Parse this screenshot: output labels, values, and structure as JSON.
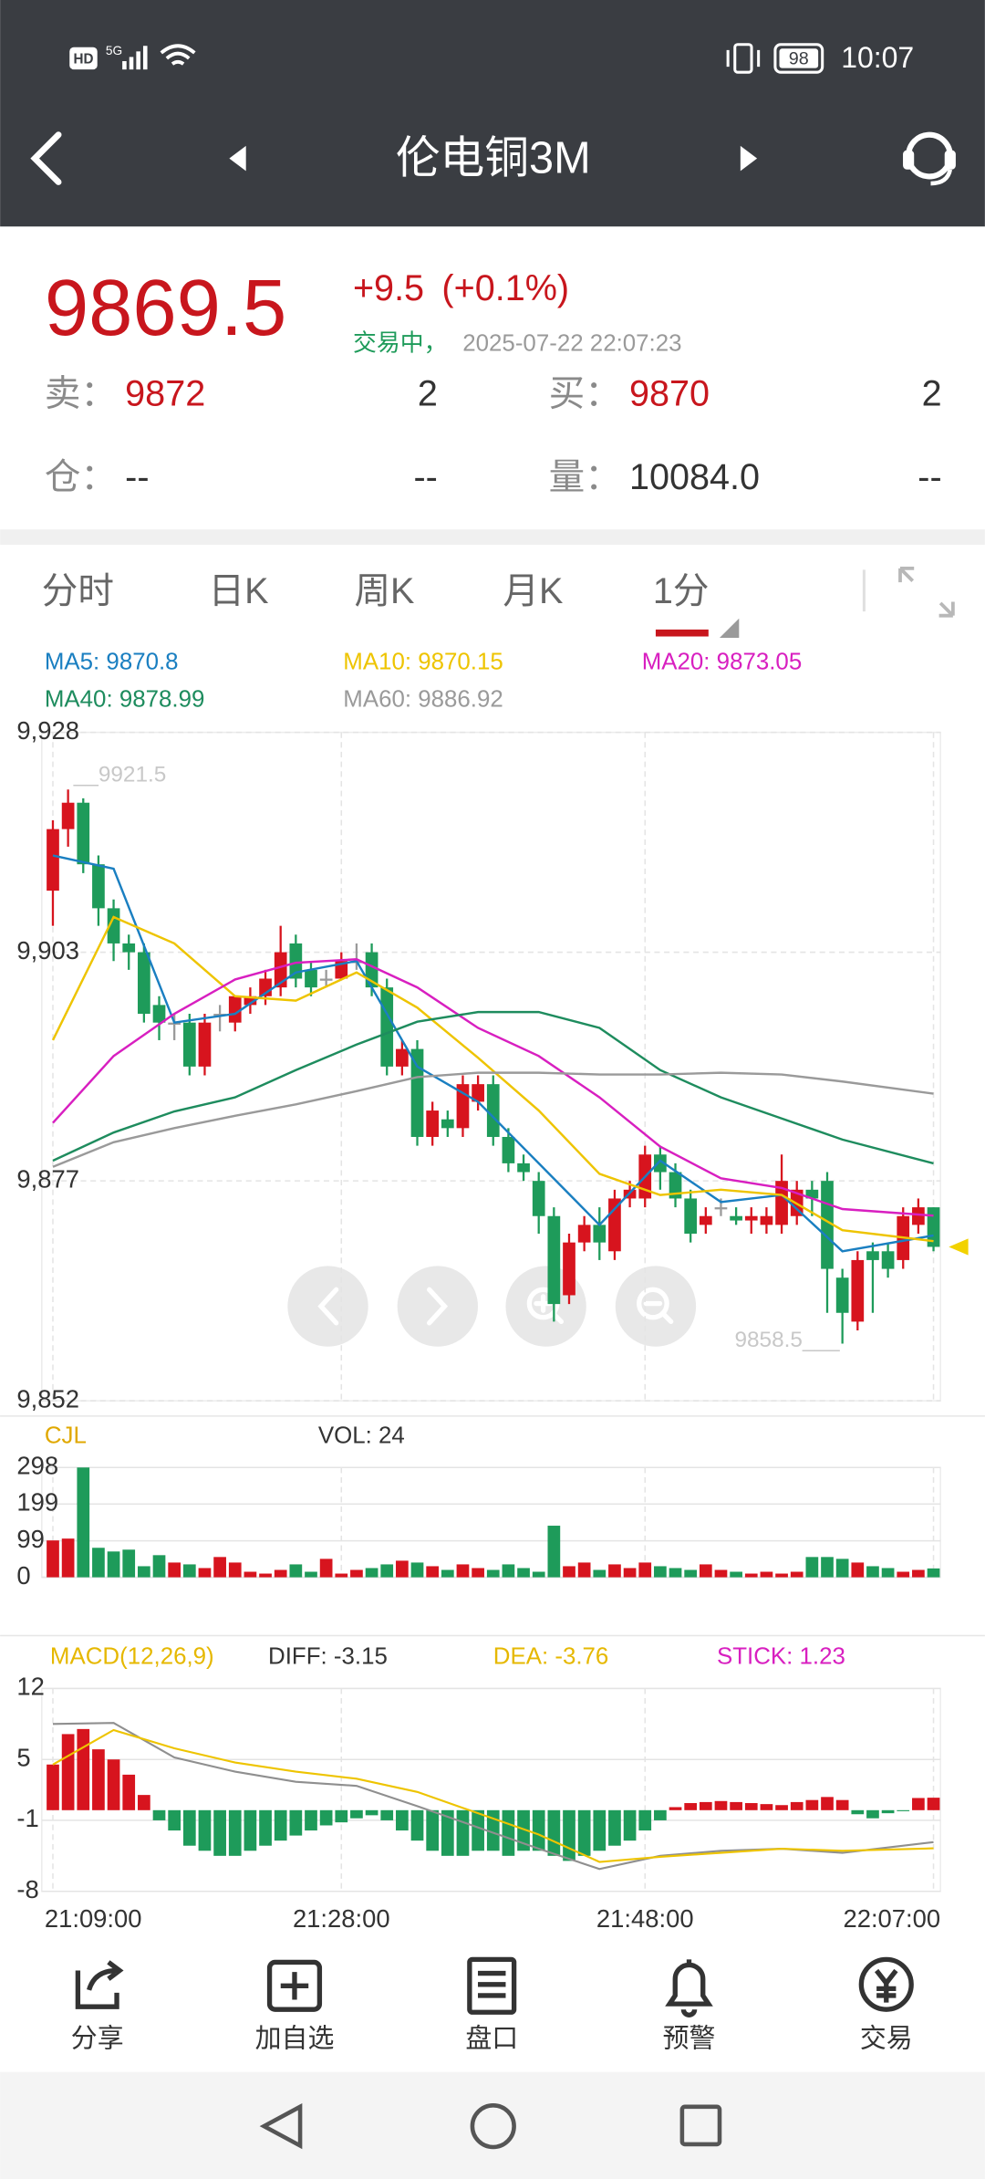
{
  "status_bar": {
    "hd": "HD",
    "network": "5G",
    "battery": 98,
    "time": "10:07"
  },
  "header": {
    "title": "伦电铜3M"
  },
  "quote": {
    "price": 9869.5,
    "change": "+9.5",
    "change_pct": "(+0.1%)",
    "status": "交易中，",
    "timestamp": "2025-07-22 22:07:23",
    "sell_label": "卖：",
    "sell_price": 9872,
    "sell_qty": 2,
    "buy_label": "买：",
    "buy_price": 9870,
    "buy_qty": 2,
    "oi_label": "仓：",
    "oi": "--",
    "oi_change": "--",
    "vol_label": "量：",
    "volume": "10084.0",
    "volume_change": "--"
  },
  "tabs": [
    "分时",
    "日K",
    "周K",
    "月K",
    "1分"
  ],
  "selected_tab": 4,
  "chart_data": [
    {
      "type": "candlestick",
      "up_color": "#d7141e",
      "down_color": "#1e9b5a",
      "flat_color": "#9a9a9a",
      "open": [
        9910,
        9917,
        9920,
        9913,
        9908,
        9904,
        9903,
        9897,
        9895,
        9895,
        9890,
        9896,
        9895,
        9897,
        9898,
        9899,
        9904,
        9901,
        9900,
        9900,
        9902,
        9903,
        9899,
        9890,
        9892,
        9882,
        9884,
        9883,
        9886,
        9888,
        9882,
        9879,
        9877,
        9873,
        9864,
        9870,
        9872,
        9869,
        9875,
        9875,
        9880,
        9878,
        9875,
        9872,
        9874,
        9873,
        9872.5,
        9872,
        9872,
        9873,
        9876,
        9877,
        9866,
        9861,
        9869,
        9869,
        9868,
        9872,
        9874
      ],
      "high": [
        9918,
        9921.5,
        9920.5,
        9914,
        9909,
        9905,
        9904,
        9898,
        9896,
        9896,
        9896,
        9897,
        9898,
        9899,
        9901,
        9906,
        9905,
        9902,
        9901,
        9903,
        9904,
        9904,
        9900,
        9893,
        9893,
        9886,
        9885,
        9889,
        9889,
        9889,
        9883,
        9880,
        9878,
        9874,
        9871,
        9873,
        9874,
        9876,
        9877,
        9881,
        9881,
        9879,
        9876,
        9874,
        9875,
        9874,
        9874,
        9874,
        9880,
        9877,
        9877,
        9878,
        9867,
        9869,
        9870,
        9870,
        9874,
        9875,
        9874
      ],
      "low": [
        9906,
        9915,
        9912,
        9906,
        9902,
        9901,
        9895,
        9893,
        9893,
        9889,
        9889,
        9894,
        9894,
        9896,
        9897,
        9898,
        9899,
        9898,
        9899,
        9900,
        9901,
        9898,
        9889,
        9889,
        9881,
        9881,
        9882,
        9882,
        9885,
        9881,
        9878,
        9877,
        9871,
        9861,
        9863,
        9869,
        9868,
        9868,
        9874,
        9874,
        9876,
        9874,
        9870,
        9871,
        9873,
        9872,
        9871,
        9871,
        9871,
        9872,
        9873,
        9862,
        9858.5,
        9860,
        9862,
        9866,
        9867,
        9871,
        9869
      ],
      "close": [
        9917,
        9920,
        9913,
        9908,
        9904,
        9903,
        9896,
        9895,
        9895,
        9890,
        9895,
        9896,
        9898,
        9898,
        9900,
        9903,
        9900,
        9899,
        9900,
        9902,
        9902,
        9899,
        9890,
        9892,
        9882,
        9885,
        9883,
        9888,
        9888,
        9882,
        9879,
        9878,
        9873,
        9863,
        9870,
        9872,
        9870,
        9875,
        9876,
        9880,
        9878,
        9875,
        9871,
        9873,
        9874,
        9872.5,
        9873,
        9873,
        9877,
        9876,
        9875,
        9867,
        9862,
        9868,
        9868,
        9867,
        9873,
        9874,
        9869.5
      ],
      "max_label": "__9921.5",
      "min_label": "9858.5___",
      "ylim": [
        9852,
        9928
      ],
      "yticks": [
        {
          "value": 9928,
          "label": "9,928"
        },
        {
          "value": 9903,
          "label": "9,903"
        },
        {
          "value": 9877,
          "label": "9,877"
        },
        {
          "value": 9852,
          "label": "9,852"
        }
      ],
      "grid": true,
      "series": [
        {
          "name": "MA5: 9870.8",
          "color": "#1a7fc1",
          "x": [
            0,
            4,
            8,
            12,
            16,
            20,
            24,
            28,
            32,
            36,
            40,
            44,
            48,
            52,
            58
          ],
          "values": [
            9914,
            9912.5,
            9895,
            9896,
            9900.7,
            9902,
            9890,
            9886,
            9879,
            9872,
            9879.3,
            9874.6,
            9875.4,
            9869,
            9870.8
          ]
        },
        {
          "name": "MA10: 9870.15",
          "color": "#eec400",
          "x": [
            0,
            4,
            8,
            12,
            16,
            20,
            24,
            28,
            32,
            36,
            40,
            44,
            48,
            52,
            58
          ],
          "values": [
            9893,
            9907,
            9904,
            9898,
            9897.5,
            9900.7,
            9896.7,
            9891,
            9885,
            9877.8,
            9875.4,
            9876,
            9875.4,
            9871.4,
            9870.15
          ]
        },
        {
          "name": "MA20: 9873.05",
          "color": "#d81fc0",
          "x": [
            0,
            4,
            8,
            12,
            16,
            20,
            24,
            28,
            32,
            36,
            40,
            44,
            48,
            52,
            58
          ],
          "values": [
            9883.6,
            9891.2,
            9896,
            9899.9,
            9901.8,
            9902.2,
            9899,
            9894.4,
            9891.2,
            9886.5,
            9880.9,
            9877.3,
            9876.2,
            9873.8,
            9873.05
          ]
        },
        {
          "name": "MA40: 9878.99",
          "color": "#1e8c5e",
          "x": [
            0,
            4,
            8,
            12,
            16,
            20,
            24,
            28,
            32,
            36,
            40,
            44,
            48,
            52,
            58
          ],
          "values": [
            9879.3,
            9882.5,
            9884.9,
            9886.5,
            9889.6,
            9892.5,
            9895.1,
            9896.2,
            9896.2,
            9894.4,
            9889.6,
            9886.5,
            9884.1,
            9881.7,
            9878.99
          ]
        },
        {
          "name": "MA60: 9886.92",
          "color": "#9a9a9a",
          "x": [
            0,
            4,
            8,
            12,
            16,
            20,
            24,
            28,
            32,
            36,
            40,
            44,
            48,
            52,
            58
          ],
          "values": [
            9878.6,
            9881.4,
            9883,
            9884.4,
            9885.7,
            9887.2,
            9888.8,
            9889.3,
            9889.3,
            9889.1,
            9889.1,
            9889.3,
            9889.1,
            9888.3,
            9886.92
          ]
        }
      ]
    },
    {
      "type": "bar",
      "title": "CJL",
      "title_color": "#e0a800",
      "subtitle": "VOL: 24",
      "values": [
        100,
        105,
        298,
        80,
        70,
        75,
        30,
        60,
        40,
        35,
        25,
        55,
        40,
        15,
        10,
        20,
        35,
        15,
        50,
        10,
        20,
        25,
        35,
        45,
        40,
        30,
        20,
        35,
        25,
        20,
        35,
        25,
        15,
        140,
        30,
        40,
        20,
        35,
        25,
        40,
        30,
        25,
        20,
        35,
        20,
        15,
        10,
        15,
        10,
        15,
        55,
        55,
        50,
        40,
        30,
        25,
        15,
        20,
        24
      ],
      "ylim": [
        0,
        298
      ],
      "yticks": [
        0,
        99,
        199,
        298
      ]
    },
    {
      "type": "macd",
      "title": "MACD(12,26,9)",
      "title_color": "#e6b800",
      "stick_name": "STICK: 1.23",
      "stick_color": "#d81fc0",
      "values": [
        4.5,
        7.5,
        8,
        6,
        5,
        3.5,
        1.5,
        -1,
        -2,
        -3.5,
        -4,
        -4.5,
        -4.5,
        -4,
        -3.5,
        -3,
        -2.5,
        -2,
        -1.5,
        -1.2,
        -0.8,
        -0.5,
        -1,
        -2,
        -3,
        -4,
        -4.5,
        -4.5,
        -4,
        -4,
        -4.5,
        -4,
        -4,
        -4.5,
        -5,
        -4.5,
        -4,
        -3.5,
        -3,
        -2,
        -1,
        0.3,
        0.7,
        0.8,
        0.9,
        0.8,
        0.7,
        0.6,
        0.5,
        0.8,
        1,
        1.3,
        1,
        -0.4,
        -0.8,
        -0.3,
        -0.1,
        1.2,
        1.23
      ],
      "series": [
        {
          "name": "DIFF: -3.15",
          "color": "#8f8f8f",
          "legend_color": "#333333",
          "x": [
            0,
            4,
            8,
            12,
            16,
            20,
            24,
            28,
            32,
            36,
            40,
            44,
            48,
            52,
            58
          ],
          "values": [
            8.5,
            8.6,
            5.2,
            3.8,
            2.8,
            2.4,
            0.4,
            -1.7,
            -3.8,
            -5.8,
            -4.5,
            -4,
            -3.8,
            -4.2,
            -3.15
          ]
        },
        {
          "name": "DEA: -3.76",
          "color": "#eec400",
          "legend_color": "#e6b800",
          "x": [
            0,
            4,
            8,
            12,
            16,
            20,
            24,
            28,
            32,
            36,
            40,
            44,
            48,
            52,
            58
          ],
          "values": [
            4.5,
            7.9,
            6.1,
            4.7,
            3.8,
            3.1,
            1.8,
            -0.3,
            -2.4,
            -5.1,
            -4.6,
            -4.2,
            -3.8,
            -4,
            -3.76
          ]
        }
      ],
      "ylim": [
        -8,
        12
      ],
      "yticks": [
        12,
        5,
        -1,
        -8
      ],
      "xlim": [
        0,
        58
      ],
      "xticks": [
        {
          "value": 0,
          "label": "21:09:00"
        },
        {
          "value": 19,
          "label": "21:28:00"
        },
        {
          "value": 39,
          "label": "21:48:00"
        },
        {
          "value": 58,
          "label": "22:07:00"
        }
      ]
    }
  ],
  "toolbar": [
    "分享",
    "加自选",
    "盘口",
    "预警",
    "交易"
  ]
}
